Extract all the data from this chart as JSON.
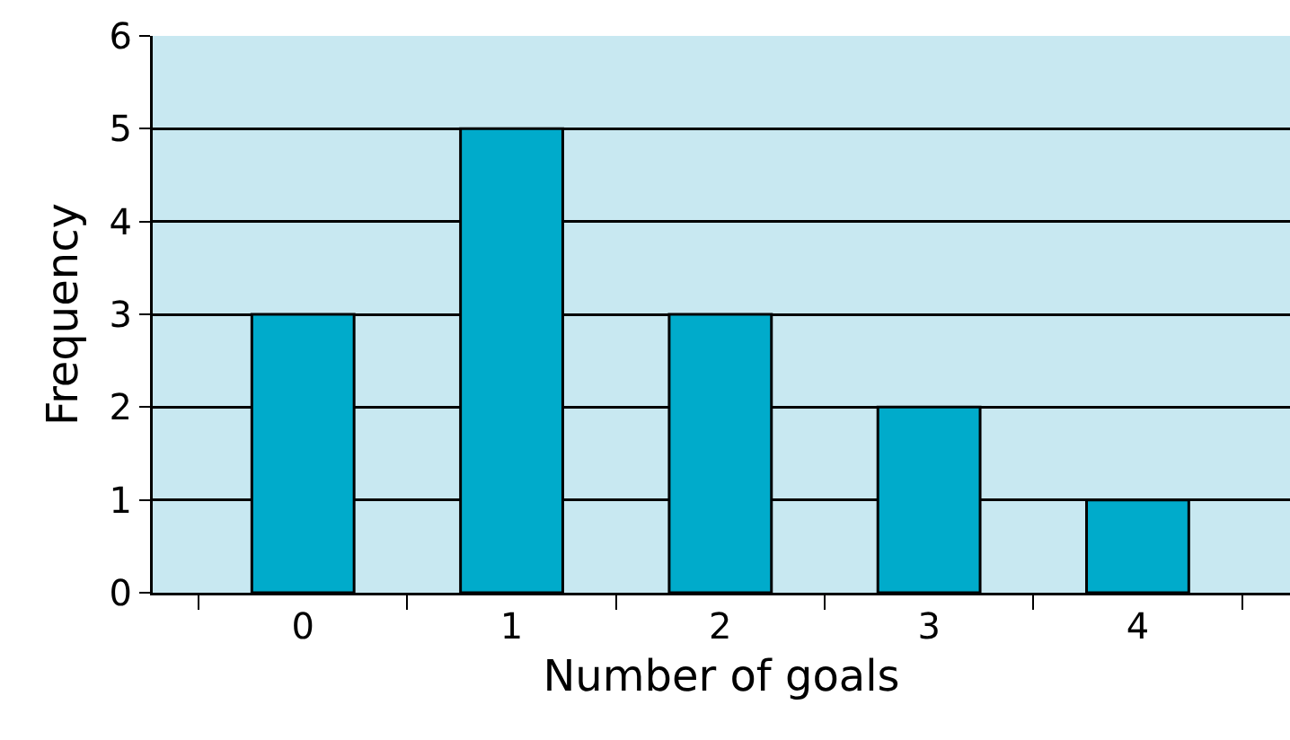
{
  "chart_data": {
    "type": "bar",
    "xlabel": "Number of goals",
    "ylabel": "Frequency",
    "categories": [
      "0",
      "1",
      "2",
      "3",
      "4"
    ],
    "values": [
      3,
      5,
      3,
      2,
      1
    ],
    "color": "#00abcb",
    "ylim": [
      0,
      6
    ],
    "yticks": [
      0,
      1,
      2,
      3,
      4,
      5,
      6
    ],
    "grid": "y"
  }
}
